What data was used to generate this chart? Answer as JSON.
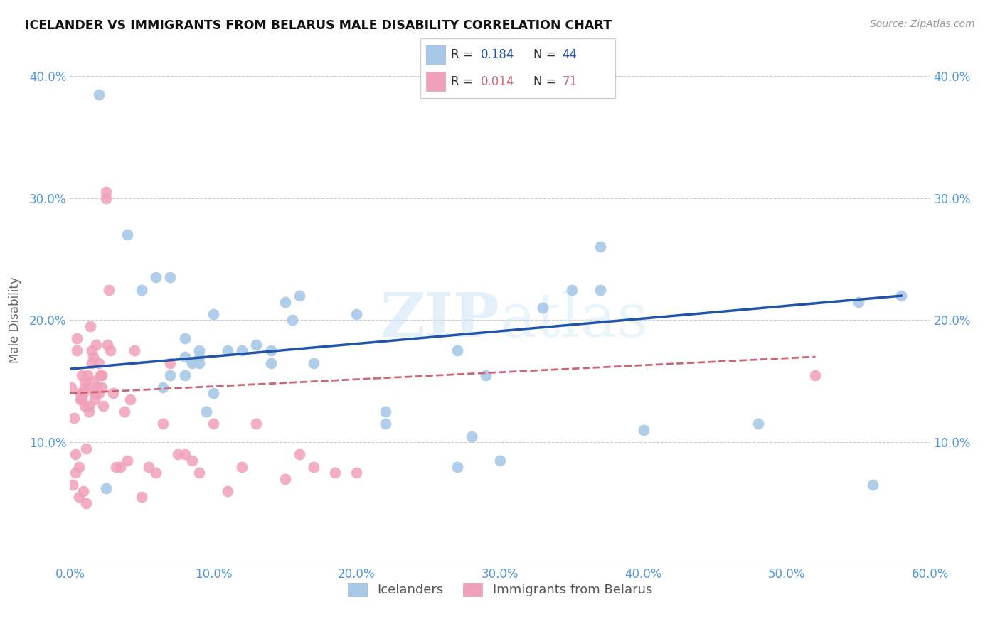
{
  "title": "ICELANDER VS IMMIGRANTS FROM BELARUS MALE DISABILITY CORRELATION CHART",
  "source": "Source: ZipAtlas.com",
  "tick_color": "#5599dd",
  "ylabel": "Male Disability",
  "xlim": [
    0,
    0.6
  ],
  "ylim": [
    0,
    0.4
  ],
  "color_blue": "#a8c8e8",
  "color_pink": "#f0a0b8",
  "line_blue": "#2255aa",
  "line_pink": "#cc6677",
  "watermark": "ZIPatlas",
  "label1": "Icelanders",
  "label2": "Immigrants from Belarus",
  "legend_r1": "0.184",
  "legend_n1": "44",
  "legend_r2": "0.014",
  "legend_n2": "71",
  "icelanders_x": [
    0.02,
    0.04,
    0.05,
    0.06,
    0.07,
    0.07,
    0.08,
    0.08,
    0.09,
    0.09,
    0.1,
    0.1,
    0.11,
    0.12,
    0.13,
    0.14,
    0.15,
    0.16,
    0.17,
    0.2,
    0.22,
    0.22,
    0.27,
    0.28,
    0.3,
    0.33,
    0.35,
    0.37,
    0.37,
    0.4,
    0.48,
    0.55,
    0.56,
    0.58,
    0.025,
    0.065,
    0.095,
    0.155,
    0.29,
    0.27,
    0.08,
    0.085,
    0.09,
    0.14
  ],
  "icelanders_y": [
    0.385,
    0.27,
    0.225,
    0.235,
    0.235,
    0.155,
    0.185,
    0.17,
    0.175,
    0.165,
    0.205,
    0.14,
    0.175,
    0.175,
    0.18,
    0.175,
    0.215,
    0.22,
    0.165,
    0.205,
    0.125,
    0.115,
    0.175,
    0.105,
    0.085,
    0.21,
    0.225,
    0.26,
    0.225,
    0.11,
    0.115,
    0.215,
    0.065,
    0.22,
    0.062,
    0.145,
    0.125,
    0.2,
    0.155,
    0.08,
    0.155,
    0.165,
    0.17,
    0.165
  ],
  "belarus_x": [
    0.001,
    0.003,
    0.004,
    0.005,
    0.005,
    0.006,
    0.007,
    0.007,
    0.008,
    0.008,
    0.009,
    0.01,
    0.01,
    0.01,
    0.011,
    0.012,
    0.012,
    0.013,
    0.013,
    0.014,
    0.015,
    0.015,
    0.016,
    0.016,
    0.017,
    0.017,
    0.018,
    0.018,
    0.019,
    0.02,
    0.02,
    0.021,
    0.022,
    0.022,
    0.023,
    0.025,
    0.025,
    0.026,
    0.027,
    0.028,
    0.03,
    0.032,
    0.035,
    0.038,
    0.04,
    0.042,
    0.045,
    0.05,
    0.055,
    0.06,
    0.065,
    0.07,
    0.075,
    0.08,
    0.085,
    0.09,
    0.1,
    0.11,
    0.12,
    0.13,
    0.15,
    0.16,
    0.17,
    0.185,
    0.2,
    0.52,
    0.002,
    0.004,
    0.006,
    0.009,
    0.011
  ],
  "belarus_y": [
    0.145,
    0.12,
    0.09,
    0.185,
    0.175,
    0.08,
    0.14,
    0.135,
    0.155,
    0.135,
    0.14,
    0.15,
    0.145,
    0.13,
    0.095,
    0.155,
    0.145,
    0.13,
    0.125,
    0.195,
    0.175,
    0.165,
    0.17,
    0.15,
    0.14,
    0.135,
    0.18,
    0.14,
    0.145,
    0.165,
    0.14,
    0.155,
    0.155,
    0.145,
    0.13,
    0.305,
    0.3,
    0.18,
    0.225,
    0.175,
    0.14,
    0.08,
    0.08,
    0.125,
    0.085,
    0.135,
    0.175,
    0.055,
    0.08,
    0.075,
    0.115,
    0.165,
    0.09,
    0.09,
    0.085,
    0.075,
    0.115,
    0.06,
    0.08,
    0.115,
    0.07,
    0.09,
    0.08,
    0.075,
    0.075,
    0.155,
    0.065,
    0.075,
    0.055,
    0.06,
    0.05
  ]
}
